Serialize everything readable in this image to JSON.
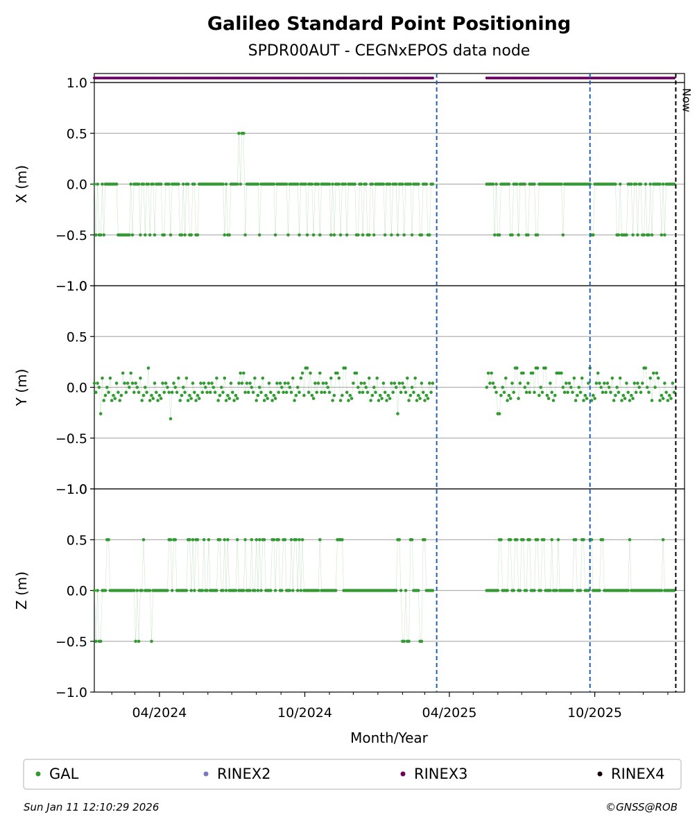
{
  "chart_data": {
    "type": "scatter",
    "title": "Galileo Standard Point Positioning",
    "subtitle": "SPDR00AUT - CEGNxEPOS data node",
    "xlabel": "Month/Year",
    "x_tick_labels": [
      "04/2024",
      "10/2024",
      "04/2025",
      "10/2025"
    ],
    "x_range": [
      "2024-01-10",
      "2026-01-22"
    ],
    "grid": "horizontal",
    "now_label": "Now",
    "now_date": "2026-01-11",
    "event_lines": [
      "2025-03-16",
      "2025-09-25"
    ],
    "colors": {
      "gal": "#339933",
      "rinex2": "#7b78c0",
      "rinex3": "#6a0060",
      "rinex4": "#1a0010",
      "event_line": "#1f5fb4",
      "now_line": "#000000",
      "grid": "#b0b0b0"
    },
    "data_gap": [
      "2025-03-12",
      "2025-05-16"
    ],
    "panels": [
      {
        "ylabel": "X (m)",
        "ylim": [
          -1.0,
          1.0
        ],
        "yticks": [
          "1.0",
          "0.5",
          "0.0",
          "−0.5",
          "−1.0"
        ],
        "baseline": 0.0,
        "outliers": [
          {
            "date": "2024-01-12",
            "value": -0.5
          },
          {
            "date": "2024-01-17",
            "value": -0.5
          },
          {
            "date": "2024-01-22",
            "value": -0.5
          },
          {
            "date": "2024-02-10",
            "value": -0.5
          },
          {
            "date": "2024-02-14",
            "value": -0.5
          },
          {
            "date": "2024-02-18",
            "value": -0.5
          },
          {
            "date": "2024-02-22",
            "value": -0.5
          },
          {
            "date": "2024-02-27",
            "value": -0.5
          },
          {
            "date": "2024-03-08",
            "value": -0.5
          },
          {
            "date": "2024-03-14",
            "value": -0.5
          },
          {
            "date": "2024-03-20",
            "value": -0.5
          },
          {
            "date": "2024-03-26",
            "value": -0.5
          },
          {
            "date": "2024-04-06",
            "value": -0.5
          },
          {
            "date": "2024-04-15",
            "value": -0.5
          },
          {
            "date": "2024-04-28",
            "value": -0.5
          },
          {
            "date": "2024-05-03",
            "value": -0.5
          },
          {
            "date": "2024-05-10",
            "value": -0.5
          },
          {
            "date": "2024-05-18",
            "value": -0.5
          },
          {
            "date": "2024-06-22",
            "value": -0.5
          },
          {
            "date": "2024-06-27",
            "value": -0.5
          },
          {
            "date": "2024-07-10",
            "value": 0.5
          },
          {
            "date": "2024-07-15",
            "value": 0.5
          },
          {
            "date": "2024-07-18",
            "value": -0.5
          },
          {
            "date": "2024-08-05",
            "value": -0.5
          },
          {
            "date": "2024-08-25",
            "value": -0.5
          },
          {
            "date": "2024-09-10",
            "value": -0.5
          },
          {
            "date": "2024-09-24",
            "value": -0.5
          },
          {
            "date": "2024-10-04",
            "value": -0.5
          },
          {
            "date": "2024-10-12",
            "value": -0.5
          },
          {
            "date": "2024-10-20",
            "value": -0.5
          },
          {
            "date": "2024-11-03",
            "value": -0.5
          },
          {
            "date": "2024-11-07",
            "value": -0.5
          },
          {
            "date": "2024-11-15",
            "value": -0.5
          },
          {
            "date": "2024-11-23",
            "value": -0.5
          },
          {
            "date": "2024-12-06",
            "value": -0.5
          },
          {
            "date": "2024-12-13",
            "value": -0.5
          },
          {
            "date": "2024-12-20",
            "value": -0.5
          },
          {
            "date": "2024-12-27",
            "value": -0.5
          },
          {
            "date": "2025-01-10",
            "value": -0.5
          },
          {
            "date": "2025-01-18",
            "value": -0.5
          },
          {
            "date": "2025-01-26",
            "value": -0.5
          },
          {
            "date": "2025-02-03",
            "value": -0.5
          },
          {
            "date": "2025-02-13",
            "value": -0.5
          },
          {
            "date": "2025-02-24",
            "value": -0.5
          },
          {
            "date": "2025-03-06",
            "value": -0.5
          },
          {
            "date": "2025-05-28",
            "value": -0.5
          },
          {
            "date": "2025-06-02",
            "value": -0.5
          },
          {
            "date": "2025-06-18",
            "value": -0.5
          },
          {
            "date": "2025-06-27",
            "value": -0.5
          },
          {
            "date": "2025-07-08",
            "value": -0.5
          },
          {
            "date": "2025-07-20",
            "value": -0.5
          },
          {
            "date": "2025-08-22",
            "value": -0.5
          },
          {
            "date": "2025-09-28",
            "value": -0.5
          },
          {
            "date": "2025-10-30",
            "value": -0.5
          },
          {
            "date": "2025-11-05",
            "value": -0.5
          },
          {
            "date": "2025-11-09",
            "value": -0.5
          },
          {
            "date": "2025-11-18",
            "value": -0.5
          },
          {
            "date": "2025-11-24",
            "value": -0.5
          },
          {
            "date": "2025-12-01",
            "value": -0.5
          },
          {
            "date": "2025-12-07",
            "value": -0.5
          },
          {
            "date": "2025-12-12",
            "value": -0.5
          },
          {
            "date": "2025-12-24",
            "value": -0.5
          },
          {
            "date": "2025-12-28",
            "value": -0.5
          }
        ]
      },
      {
        "ylabel": "Y (m)",
        "ylim": [
          -1.0,
          1.0
        ],
        "yticks": [
          "1.0",
          "0.5",
          "0.0",
          "−0.5",
          "−1.0"
        ],
        "baseline": null,
        "outliers": [
          {
            "date": "2024-01-18",
            "value": -0.26
          },
          {
            "date": "2024-02-15",
            "value": 0.14
          },
          {
            "date": "2024-02-25",
            "value": 0.14
          },
          {
            "date": "2024-03-18",
            "value": 0.19
          },
          {
            "date": "2024-04-15",
            "value": -0.31
          },
          {
            "date": "2024-07-12",
            "value": 0.14
          },
          {
            "date": "2024-07-16",
            "value": 0.14
          },
          {
            "date": "2024-09-28",
            "value": 0.14
          },
          {
            "date": "2024-10-03",
            "value": 0.19
          },
          {
            "date": "2024-10-08",
            "value": 0.14
          },
          {
            "date": "2024-10-20",
            "value": 0.14
          },
          {
            "date": "2024-11-10",
            "value": 0.14
          },
          {
            "date": "2024-11-20",
            "value": 0.19
          },
          {
            "date": "2024-12-04",
            "value": 0.14
          },
          {
            "date": "2025-01-26",
            "value": -0.26
          },
          {
            "date": "2025-05-20",
            "value": 0.14
          },
          {
            "date": "2025-05-24",
            "value": 0.14
          },
          {
            "date": "2025-06-02",
            "value": -0.26
          },
          {
            "date": "2025-06-24",
            "value": 0.19
          },
          {
            "date": "2025-07-02",
            "value": 0.14
          },
          {
            "date": "2025-07-14",
            "value": 0.14
          },
          {
            "date": "2025-07-20",
            "value": 0.19
          },
          {
            "date": "2025-07-30",
            "value": 0.19
          },
          {
            "date": "2025-08-15",
            "value": 0.14
          },
          {
            "date": "2025-08-19",
            "value": 0.14
          },
          {
            "date": "2025-09-25",
            "value": 0.19
          },
          {
            "date": "2025-10-05",
            "value": 0.14
          },
          {
            "date": "2025-12-03",
            "value": 0.19
          },
          {
            "date": "2025-12-14",
            "value": 0.14
          },
          {
            "date": "2025-12-18",
            "value": 0.14
          }
        ]
      },
      {
        "ylabel": "Z (m)",
        "ylim": [
          -1.0,
          1.0
        ],
        "yticks": [
          "1.0",
          "0.5",
          "0.0",
          "−0.5",
          "−1.0"
        ],
        "baseline": 0.0,
        "outliers": [
          {
            "date": "2024-01-12",
            "value": -0.5
          },
          {
            "date": "2024-01-17",
            "value": -0.5
          },
          {
            "date": "2024-01-27",
            "value": 0.5
          },
          {
            "date": "2024-03-02",
            "value": -0.5
          },
          {
            "date": "2024-03-06",
            "value": -0.5
          },
          {
            "date": "2024-03-12",
            "value": 0.5
          },
          {
            "date": "2024-03-22",
            "value": -0.5
          },
          {
            "date": "2024-04-14",
            "value": 0.5
          },
          {
            "date": "2024-04-20",
            "value": 0.5
          },
          {
            "date": "2024-05-08",
            "value": 0.5
          },
          {
            "date": "2024-05-13",
            "value": 0.5
          },
          {
            "date": "2024-05-18",
            "value": 0.5
          },
          {
            "date": "2024-05-27",
            "value": 0.5
          },
          {
            "date": "2024-06-02",
            "value": 0.5
          },
          {
            "date": "2024-06-15",
            "value": 0.5
          },
          {
            "date": "2024-06-22",
            "value": 0.5
          },
          {
            "date": "2024-06-26",
            "value": 0.5
          },
          {
            "date": "2024-07-08",
            "value": 0.5
          },
          {
            "date": "2024-07-18",
            "value": 0.5
          },
          {
            "date": "2024-07-26",
            "value": 0.5
          },
          {
            "date": "2024-08-01",
            "value": 0.5
          },
          {
            "date": "2024-08-05",
            "value": 0.5
          },
          {
            "date": "2024-08-10",
            "value": 0.5
          },
          {
            "date": "2024-08-22",
            "value": 0.5
          },
          {
            "date": "2024-08-28",
            "value": 0.5
          },
          {
            "date": "2024-09-05",
            "value": 0.5
          },
          {
            "date": "2024-09-14",
            "value": 0.5
          },
          {
            "date": "2024-09-19",
            "value": 0.5
          },
          {
            "date": "2024-09-24",
            "value": 0.5
          },
          {
            "date": "2024-09-28",
            "value": 0.5
          },
          {
            "date": "2024-10-20",
            "value": 0.5
          },
          {
            "date": "2024-11-12",
            "value": 0.5
          },
          {
            "date": "2024-11-16",
            "value": 0.5
          },
          {
            "date": "2025-01-27",
            "value": 0.5
          },
          {
            "date": "2025-02-02",
            "value": -0.5
          },
          {
            "date": "2025-02-08",
            "value": -0.5
          },
          {
            "date": "2025-02-12",
            "value": 0.5
          },
          {
            "date": "2025-02-24",
            "value": -0.5
          },
          {
            "date": "2025-02-28",
            "value": 0.5
          },
          {
            "date": "2025-06-04",
            "value": 0.5
          },
          {
            "date": "2025-06-16",
            "value": 0.5
          },
          {
            "date": "2025-06-24",
            "value": 0.5
          },
          {
            "date": "2025-07-02",
            "value": 0.5
          },
          {
            "date": "2025-07-10",
            "value": 0.5
          },
          {
            "date": "2025-07-20",
            "value": 0.5
          },
          {
            "date": "2025-07-28",
            "value": 0.5
          },
          {
            "date": "2025-08-08",
            "value": 0.5
          },
          {
            "date": "2025-08-16",
            "value": 0.5
          },
          {
            "date": "2025-09-06",
            "value": 0.5
          },
          {
            "date": "2025-09-16",
            "value": 0.5
          },
          {
            "date": "2025-09-26",
            "value": 0.5
          },
          {
            "date": "2025-10-10",
            "value": 0.5
          },
          {
            "date": "2025-11-14",
            "value": 0.5
          },
          {
            "date": "2025-12-26",
            "value": 0.5
          }
        ]
      }
    ],
    "legend": {
      "placement": "bottom",
      "entries": [
        {
          "label": "GAL",
          "color_key": "gal"
        },
        {
          "label": "RINEX2",
          "color_key": "rinex2"
        },
        {
          "label": "RINEX3",
          "color_key": "rinex3"
        },
        {
          "label": "RINEX4",
          "color_key": "rinex4"
        }
      ]
    }
  },
  "footer": {
    "timestamp": "Sun Jan 11 12:10:29 2026",
    "credit": "©GNSS@ROB"
  }
}
